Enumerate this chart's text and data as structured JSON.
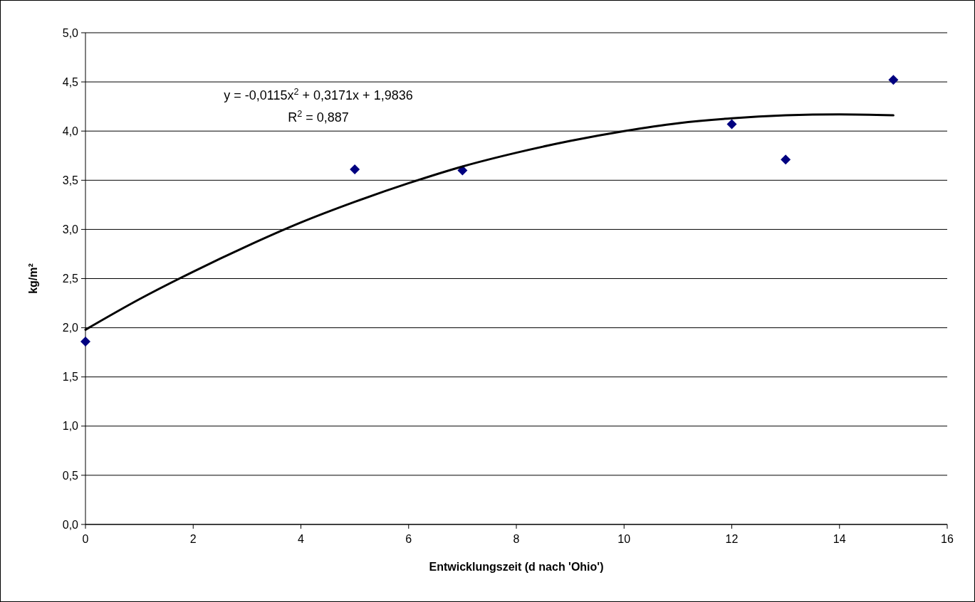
{
  "chart_data": {
    "type": "scatter",
    "xlabel": "Entwicklungszeit (d nach 'Ohio')",
    "ylabel": "kg/m²",
    "xlim": [
      0,
      16
    ],
    "xticks": [
      0,
      2,
      4,
      6,
      8,
      10,
      12,
      14,
      16
    ],
    "ylim": [
      0,
      5
    ],
    "yticks": [
      {
        "value": 0,
        "label": "0,0"
      },
      {
        "value": 0.5,
        "label": "0,5"
      },
      {
        "value": 1,
        "label": "1,0"
      },
      {
        "value": 1.5,
        "label": "1,5"
      },
      {
        "value": 2,
        "label": "2,0"
      },
      {
        "value": 2.5,
        "label": "2,5"
      },
      {
        "value": 3,
        "label": "3,0"
      },
      {
        "value": 3.5,
        "label": "3,5"
      },
      {
        "value": 4,
        "label": "4,0"
      },
      {
        "value": 4.5,
        "label": "4,5"
      },
      {
        "value": 5,
        "label": "5,0"
      }
    ],
    "grid": "y",
    "series": [
      {
        "marker": "diamond",
        "color": "#000080",
        "x": [
          0,
          5,
          7,
          12,
          13,
          15
        ],
        "values": [
          1.86,
          3.61,
          3.6,
          4.07,
          3.71,
          4.52
        ]
      },
      {
        "type": "line",
        "color": "#000000",
        "x": [
          0,
          1,
          2,
          3,
          4,
          5,
          6,
          7,
          8,
          9,
          10,
          11,
          12,
          13,
          14,
          15
        ],
        "values": [
          1.98,
          2.29,
          2.57,
          2.83,
          3.07,
          3.28,
          3.47,
          3.64,
          3.78,
          3.9,
          4.0,
          4.08,
          4.13,
          4.16,
          4.17,
          4.16
        ]
      }
    ],
    "annotations": [
      "y = -0,0115x$^{2}$ + 0,3171x + 1,9836",
      "R$^{2}$ = 0,887"
    ]
  }
}
